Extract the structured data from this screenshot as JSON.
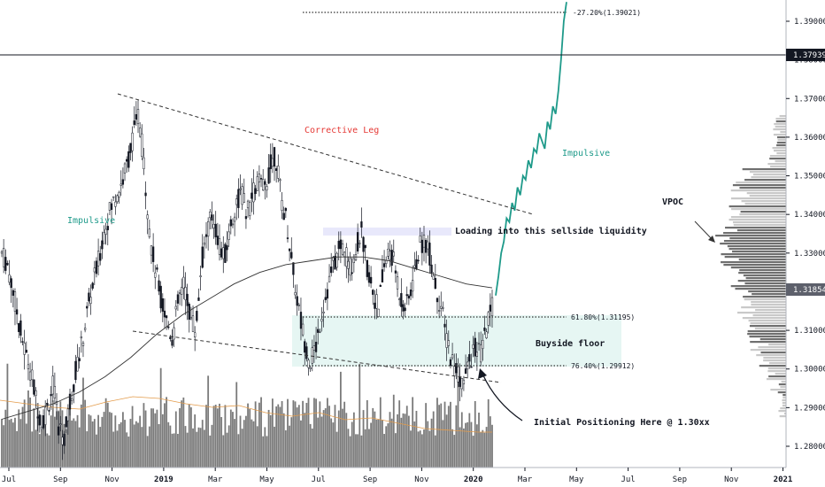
{
  "chart_data": {
    "type": "candlestick",
    "title": "",
    "y_axis": {
      "ticks": [
        "1.28000",
        "1.29000",
        "1.30000",
        "1.31000",
        "1.32000",
        "1.33000",
        "1.34000",
        "1.35000",
        "1.36000",
        "1.37000",
        "1.38000",
        "1.39000"
      ],
      "range": [
        1.2745,
        1.3955
      ]
    },
    "x_axis": {
      "ticks": [
        {
          "label": "Jul",
          "bold": false
        },
        {
          "label": "Sep",
          "bold": false
        },
        {
          "label": "Nov",
          "bold": false
        },
        {
          "label": "2019",
          "bold": true
        },
        {
          "label": "Mar",
          "bold": false
        },
        {
          "label": "May",
          "bold": false
        },
        {
          "label": "Jul",
          "bold": false
        },
        {
          "label": "Sep",
          "bold": false
        },
        {
          "label": "Nov",
          "bold": false
        },
        {
          "label": "2020",
          "bold": true
        },
        {
          "label": "Mar",
          "bold": false
        },
        {
          "label": "May",
          "bold": false
        },
        {
          "label": "Jul",
          "bold": false
        },
        {
          "label": "Sep",
          "bold": false
        },
        {
          "label": "Nov",
          "bold": false
        },
        {
          "label": "2021",
          "bold": true
        }
      ]
    },
    "price_labels": [
      {
        "text": "1.37939",
        "value": 1.37939,
        "style": "black"
      },
      {
        "text": "1.31854",
        "value": 1.31854,
        "style": "gray"
      }
    ],
    "fib_levels": [
      {
        "label": "61.80%(1.31195)",
        "value": 1.31195
      },
      {
        "label": "76.40%(1.29912)",
        "value": 1.29912
      },
      {
        "label": "-27.20%(1.39021)",
        "value": 1.39021
      }
    ],
    "annotations": [
      {
        "text": "Corrective Leg",
        "color": "red"
      },
      {
        "text": "Impulsive",
        "color": "green"
      },
      {
        "text": "Impulsive",
        "color": "green"
      },
      {
        "text": "VPOC",
        "color": "black"
      },
      {
        "text": "Loading into this sellside liquidity",
        "color": "black"
      },
      {
        "text": "Buyside floor",
        "color": "black"
      },
      {
        "text": "Initial Positioning Here @ 1.30xx",
        "color": "black"
      }
    ],
    "zones": [
      {
        "name": "buyside-floor",
        "from": 1.29912,
        "to": 1.31195,
        "color": "#e6f6f3"
      },
      {
        "name": "sellside-liquidity",
        "from": 1.333,
        "to": 1.3342,
        "color": "#e8e8fb"
      }
    ],
    "price_path": [
      1.33,
      1.327,
      1.32,
      1.312,
      1.305,
      1.3,
      1.292,
      1.286,
      1.29,
      1.296,
      1.285,
      1.282,
      1.292,
      1.3,
      1.306,
      1.315,
      1.322,
      1.328,
      1.336,
      1.341,
      1.345,
      1.348,
      1.353,
      1.36,
      1.366,
      1.352,
      1.334,
      1.325,
      1.318,
      1.312,
      1.308,
      1.318,
      1.322,
      1.314,
      1.31,
      1.327,
      1.336,
      1.34,
      1.333,
      1.328,
      1.336,
      1.342,
      1.346,
      1.34,
      1.345,
      1.349,
      1.346,
      1.352,
      1.356,
      1.344,
      1.338,
      1.326,
      1.316,
      1.308,
      1.302,
      1.305,
      1.314,
      1.32,
      1.326,
      1.33,
      1.332,
      1.326,
      1.33,
      1.336,
      1.327,
      1.321,
      1.315,
      1.326,
      1.331,
      1.326,
      1.318,
      1.316,
      1.322,
      1.33,
      1.334,
      1.33,
      1.322,
      1.316,
      1.308,
      1.302,
      1.299,
      1.296,
      1.302,
      1.305,
      1.304,
      1.31,
      1.316
    ],
    "projection_path": [
      1.319,
      1.324,
      1.33,
      1.333,
      1.339,
      1.338,
      1.343,
      1.341,
      1.347,
      1.345,
      1.35,
      1.349,
      1.354,
      1.352,
      1.357,
      1.356,
      1.361,
      1.359,
      1.357,
      1.364,
      1.362,
      1.368,
      1.366,
      1.372,
      1.38,
      1.39,
      1.395
    ],
    "ma_path": [
      1.287,
      1.289,
      1.291,
      1.294,
      1.298,
      1.303,
      1.309,
      1.314,
      1.318,
      1.322,
      1.325,
      1.327,
      1.328,
      1.329,
      1.329,
      1.328,
      1.326,
      1.324,
      1.322,
      1.321
    ]
  }
}
